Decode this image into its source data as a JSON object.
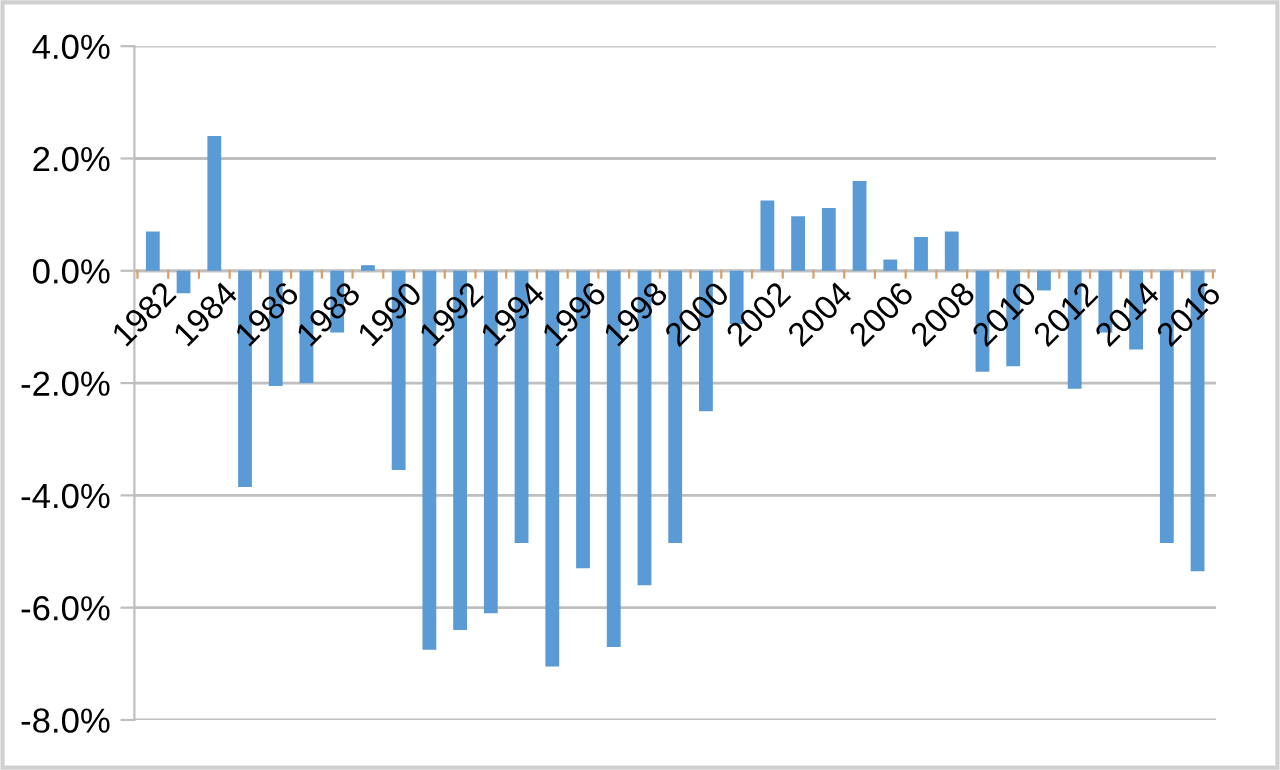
{
  "chart_data": {
    "type": "bar",
    "categories": [
      "1982",
      null,
      "1984",
      null,
      "1986",
      null,
      "1988",
      null,
      "1990",
      null,
      "1992",
      null,
      "1994",
      null,
      "1996",
      null,
      "1998",
      null,
      "2000",
      null,
      "2002",
      null,
      "2004",
      null,
      "2006",
      null,
      "2008",
      null,
      "2010",
      null,
      "2012",
      null,
      "2014",
      null,
      "2016"
    ],
    "values": [
      0.7,
      -0.4,
      2.4,
      -3.85,
      -2.05,
      -2.0,
      -1.1,
      0.1,
      -3.55,
      -6.75,
      -6.4,
      -6.1,
      -4.85,
      -7.05,
      -5.3,
      -6.7,
      -5.6,
      -4.85,
      -2.5,
      -0.95,
      1.25,
      0.97,
      1.12,
      1.6,
      0.2,
      0.6,
      0.7,
      -1.8,
      -1.7,
      -0.35,
      -2.1,
      -1.1,
      -1.4,
      -4.85,
      -5.35
    ],
    "color": "#5b9bd5",
    "ylim": [
      -8,
      4
    ],
    "yticks": [
      {
        "value": -8,
        "label": "-8.0%"
      },
      {
        "value": -6,
        "label": "-6.0%"
      },
      {
        "value": -4,
        "label": "-4.0%"
      },
      {
        "value": -2,
        "label": "-2.0%"
      },
      {
        "value": 0,
        "label": "0.0%"
      },
      {
        "value": 2,
        "label": "2.0%"
      },
      {
        "value": 4,
        "label": "4.0%"
      }
    ],
    "grid": "y"
  }
}
